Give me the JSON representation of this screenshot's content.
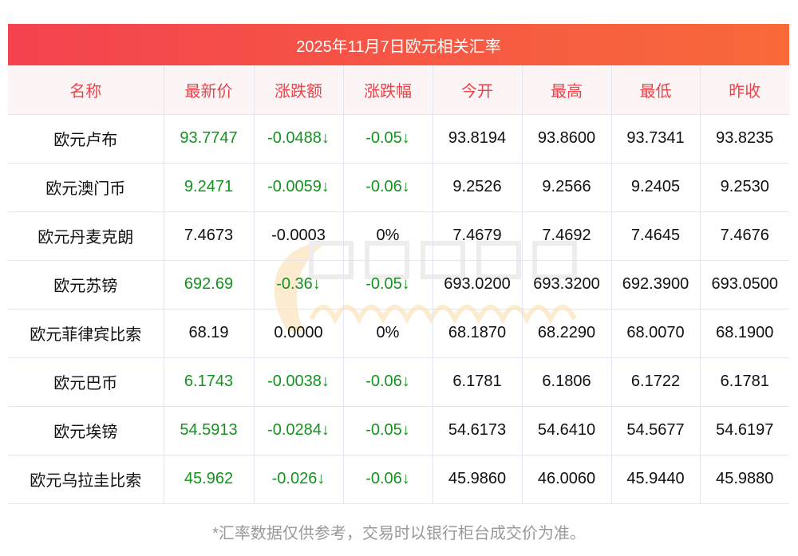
{
  "title": "2025年11月7日欧元相关汇率",
  "headers": [
    "名称",
    "最新价",
    "涨跌额",
    "涨跌幅",
    "今开",
    "最高",
    "最低",
    "昨收"
  ],
  "rows": [
    {
      "name": "欧元卢布",
      "latest": "93.7747",
      "change": "-0.0488↓",
      "pct": "-0.05↓",
      "open": "93.8194",
      "high": "93.8600",
      "low": "93.7341",
      "prev": "93.8235",
      "down": true
    },
    {
      "name": "欧元澳门币",
      "latest": "9.2471",
      "change": "-0.0059↓",
      "pct": "-0.06↓",
      "open": "9.2526",
      "high": "9.2566",
      "low": "9.2405",
      "prev": "9.2530",
      "down": true
    },
    {
      "name": "欧元丹麦克朗",
      "latest": "7.4673",
      "change": "-0.0003",
      "pct": "0%",
      "open": "7.4679",
      "high": "7.4692",
      "low": "7.4645",
      "prev": "7.4676",
      "down": false
    },
    {
      "name": "欧元苏镑",
      "latest": "692.69",
      "change": "-0.36↓",
      "pct": "-0.05↓",
      "open": "693.0200",
      "high": "693.3200",
      "low": "692.3900",
      "prev": "693.0500",
      "down": true
    },
    {
      "name": "欧元菲律宾比索",
      "latest": "68.19",
      "change": "0.0000",
      "pct": "0%",
      "open": "68.1870",
      "high": "68.2290",
      "low": "68.0070",
      "prev": "68.1900",
      "down": false
    },
    {
      "name": "欧元巴币",
      "latest": "6.1743",
      "change": "-0.0038↓",
      "pct": "-0.06↓",
      "open": "6.1781",
      "high": "6.1806",
      "low": "6.1722",
      "prev": "6.1781",
      "down": true
    },
    {
      "name": "欧元埃镑",
      "latest": "54.5913",
      "change": "-0.0284↓",
      "pct": "-0.05↓",
      "open": "54.6173",
      "high": "54.6410",
      "low": "54.5677",
      "prev": "54.6197",
      "down": true
    },
    {
      "name": "欧元乌拉圭比索",
      "latest": "45.962",
      "change": "-0.026↓",
      "pct": "-0.06↓",
      "open": "45.9860",
      "high": "46.0060",
      "low": "45.9440",
      "prev": "45.9880",
      "down": true
    }
  ],
  "watermark": {
    "cn": "南方财富网",
    "en": "Southmoney.com"
  },
  "footer": "*汇率数据仅供参考，交易时以银行柜台成交价为准。"
}
